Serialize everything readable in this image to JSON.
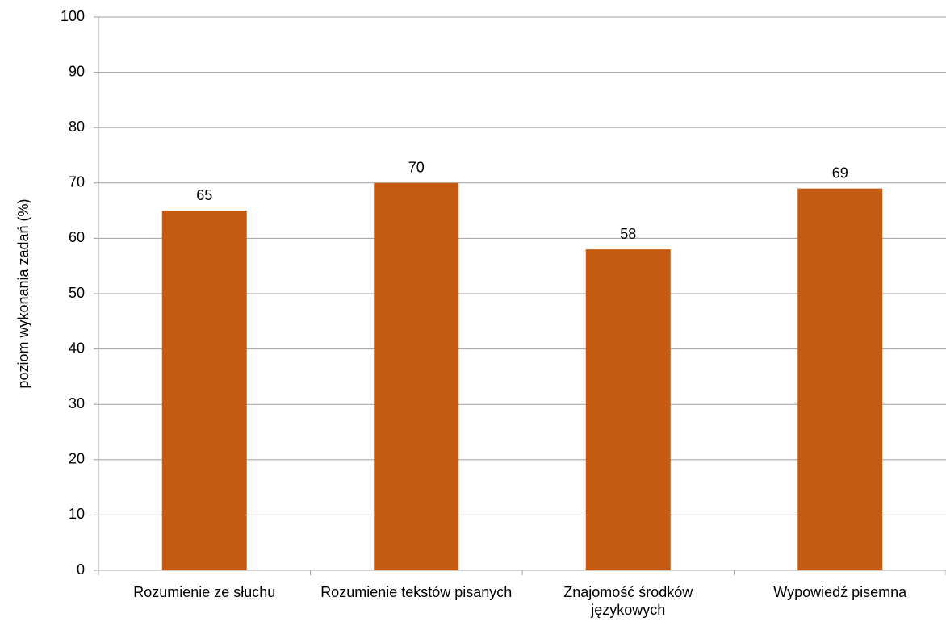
{
  "chart_data": {
    "type": "bar",
    "y_axis_label": "poziom wykonania zadań (%)",
    "categories": [
      "Rozumienie ze słuchu",
      "Rozumienie tekstów pisanych",
      "Znajomość środków językowych",
      "Wypowiedź pisemna"
    ],
    "values": [
      65,
      70,
      58,
      69
    ],
    "color": "#c55a11",
    "ylim": [
      0,
      100
    ],
    "yticks": [
      0,
      10,
      20,
      30,
      40,
      50,
      60,
      70,
      80,
      90,
      100
    ],
    "grid": true
  }
}
